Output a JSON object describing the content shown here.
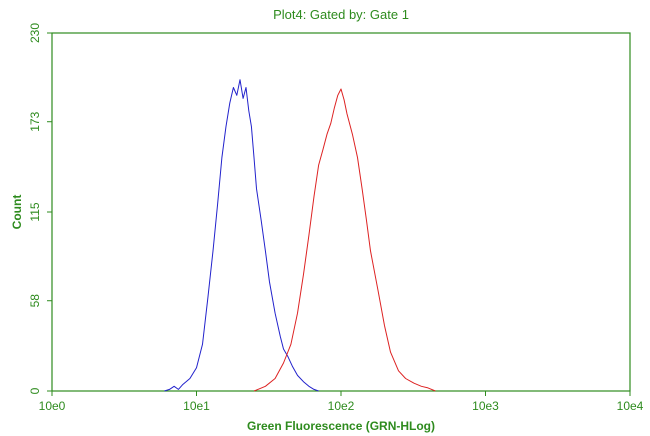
{
  "chart_data": {
    "type": "line",
    "title": "Plot4:  Gated by: Gate 1",
    "xlabel": "Green Fluorescence (GRN-HLog)",
    "ylabel": "Count",
    "x_scale": "log",
    "xlim": [
      1,
      10000
    ],
    "ylim": [
      0,
      230
    ],
    "x_ticks": [
      {
        "value": 1,
        "label": "10e0"
      },
      {
        "value": 10,
        "label": "10e1"
      },
      {
        "value": 100,
        "label": "10e2"
      },
      {
        "value": 1000,
        "label": "10e3"
      },
      {
        "value": 10000,
        "label": "10e4"
      }
    ],
    "y_ticks": [
      {
        "value": 0,
        "label": "0"
      },
      {
        "value": 58,
        "label": "58"
      },
      {
        "value": 115,
        "label": "115"
      },
      {
        "value": 173,
        "label": "173"
      },
      {
        "value": 230,
        "label": "230"
      }
    ],
    "grid": false,
    "series": [
      {
        "color": "#2222cc",
        "x": [
          6.0,
          6.5,
          7.0,
          7.5,
          8.0,
          9.0,
          10.0,
          11.0,
          12.0,
          13.0,
          14.0,
          15.0,
          16.0,
          17.0,
          18.0,
          19.0,
          20.0,
          21.0,
          22.0,
          23.0,
          24.0,
          25.0,
          26.0,
          28.0,
          30.0,
          32.0,
          35.0,
          38.0,
          40.0,
          43.0,
          46.0,
          50.0,
          55.0,
          60.0,
          65.0,
          70.0
        ],
        "y": [
          0,
          1,
          3,
          1,
          4,
          8,
          15,
          30,
          60,
          90,
          120,
          150,
          170,
          185,
          195,
          190,
          200,
          188,
          195,
          180,
          170,
          150,
          130,
          110,
          90,
          70,
          50,
          35,
          27,
          22,
          16,
          10,
          6,
          3,
          1,
          0
        ]
      },
      {
        "color": "#dd2222",
        "x": [
          25.0,
          30.0,
          35.0,
          40.0,
          45.0,
          50.0,
          55.0,
          60.0,
          65.0,
          70.0,
          75.0,
          80.0,
          85.0,
          90.0,
          95.0,
          100.0,
          105.0,
          110.0,
          120.0,
          130.0,
          140.0,
          150.0,
          160.0,
          180.0,
          200.0,
          220.0,
          250.0,
          280.0,
          320.0,
          360.0,
          400.0,
          450.0
        ],
        "y": [
          0,
          3,
          8,
          18,
          30,
          50,
          75,
          100,
          125,
          145,
          155,
          165,
          172,
          182,
          190,
          194,
          187,
          178,
          165,
          150,
          130,
          110,
          90,
          65,
          42,
          25,
          13,
          8,
          5,
          3,
          2,
          0
        ]
      }
    ]
  }
}
